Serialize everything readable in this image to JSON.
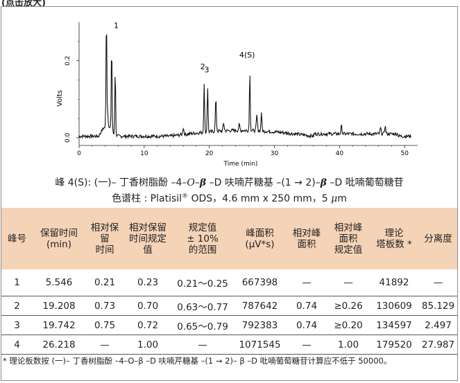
{
  "header": {
    "label": "(点击放大)"
  },
  "figure": {
    "y_axis_label": "Volts",
    "y_ticks": [
      "0.0",
      "0.2"
    ],
    "x_axis_label": "Time (min)",
    "x_ticks": [
      "0",
      "10",
      "20",
      "30",
      "40",
      "50"
    ],
    "peak_labels": [
      "1",
      "2",
      "3",
      "4(S)"
    ]
  },
  "chart_data": {
    "type": "line",
    "xlabel": "Time (min)",
    "ylabel": "Volts",
    "xlim": [
      0,
      52
    ],
    "ylim": [
      -0.02,
      0.3
    ],
    "grid": false,
    "annotations": [
      {
        "label": "1",
        "x": 5.546
      },
      {
        "label": "2",
        "x": 19.208
      },
      {
        "label": "3",
        "x": 19.742
      },
      {
        "label": "4(S)",
        "x": 26.218
      }
    ],
    "series": [
      {
        "x": [
          0,
          2,
          3.5,
          4,
          4.2,
          4.4,
          4.6,
          5.0,
          5.546,
          6,
          8,
          12,
          15,
          17,
          19.208,
          19.5,
          19.742,
          20.5,
          21,
          22,
          24,
          26.218,
          27,
          28,
          30,
          35,
          40,
          44,
          47,
          49,
          52
        ],
        "y": [
          0.0,
          0.0,
          0.03,
          0.04,
          0.3,
          0.05,
          0.04,
          0.23,
          0.18,
          0.02,
          0.01,
          0.01,
          0.015,
          0.01,
          0.14,
          0.03,
          0.13,
          0.02,
          0.05,
          0.02,
          0.03,
          0.16,
          0.04,
          0.06,
          0.02,
          0.01,
          0.01,
          0.005,
          0.01,
          0.0,
          0.0
        ]
      }
    ]
  },
  "caption": {
    "line1": {
      "a": "峰 4(S): (一)– 丁香树脂酚 –4–",
      "o": "O",
      "dash1": "–",
      "beta1": "β",
      "b": " –D 呋喃芹糖基 –(1 → 2)–",
      "beta2": "β",
      "c": " –D 吡喃葡萄糖苷"
    },
    "line2": {
      "a": "色谱柱 : Platisil",
      "reg": "®",
      "b": " ODS，4.6 mm x 250 mm，5 ",
      "mu": "μ",
      "c": "m"
    }
  },
  "table": {
    "headers": [
      "峰号",
      "保留时间\n(min)",
      "相对保\n留\n时间",
      "相对保留\n时间规定\n值",
      "规定值\n± 10%\n的范围",
      "峰面积\n(μV*s)",
      "相对峰\n面积",
      "相对峰\n面积\n规定值",
      "理论\n塔板数 *",
      "分离度"
    ],
    "rows": [
      [
        "1",
        "5.546",
        "0.21",
        "0.23",
        "0.21～0.25",
        "667398",
        "—",
        "—",
        "41892",
        "—"
      ],
      [
        "2",
        "19.208",
        "0.73",
        "0.70",
        "0.63～0.77",
        "787642",
        "0.74",
        "≥0.26",
        "130609",
        "85.129"
      ],
      [
        "3",
        "19.742",
        "0.75",
        "0.72",
        "0.65～0.79",
        "792383",
        "0.74",
        "≥0.20",
        "134597",
        "2.497"
      ],
      [
        "4",
        "26.218",
        "—",
        "1.00",
        "—",
        "1071545",
        "—",
        "1.00",
        "179520",
        "27.987"
      ]
    ]
  },
  "footnote": "* 理论板数按 (一)– 丁香树脂酚 –4–O–β –D 呋喃芹糖基 –(1 → 2)– β –D 吡喃葡萄糖苷计算应不低于 50000。",
  "colors": {
    "header_bg": "#f5d3b7",
    "trace": "#111111",
    "frame": "#8a8a8a"
  }
}
